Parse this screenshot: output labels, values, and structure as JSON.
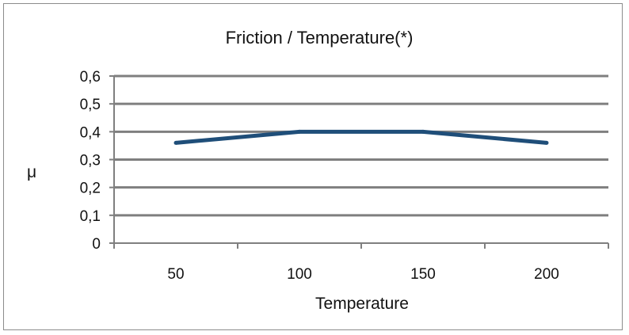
{
  "chart_data": {
    "type": "line",
    "title": "Friction / Temperature(*)",
    "xlabel": "Temperature",
    "ylabel": "μ",
    "categories": [
      "50",
      "100",
      "150",
      "200"
    ],
    "series": [
      {
        "values": [
          0.36,
          0.4,
          0.4,
          0.36
        ]
      }
    ],
    "yticks": [
      "0",
      "0,1",
      "0,2",
      "0,3",
      "0,4",
      "0,5",
      "0,6"
    ],
    "ylim": [
      0,
      0.6
    ],
    "grid": true,
    "legend": "none",
    "colors": {
      "line": "#1f4e79",
      "grid": "#7f7f7f",
      "axis": "#7f7f7f"
    }
  }
}
